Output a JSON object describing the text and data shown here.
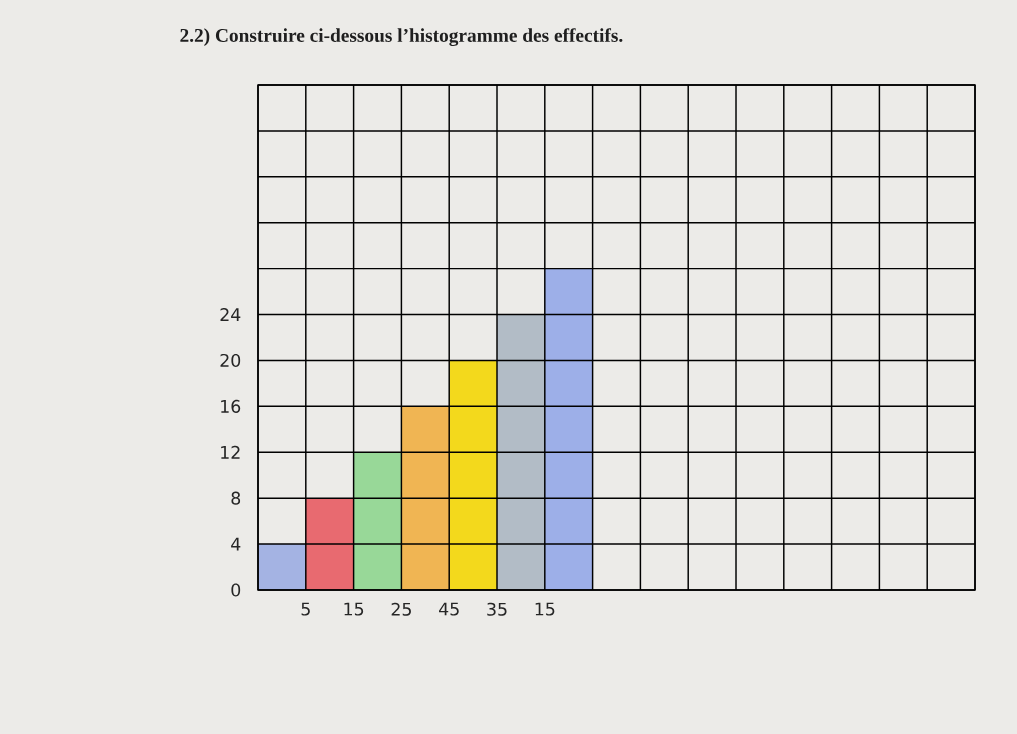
{
  "chart_data": {
    "type": "bar",
    "title": "2.2) Construire ci-dessous l’histogramme des effectifs.",
    "categories": [
      null,
      null,
      null,
      null,
      null,
      null,
      null,
      null,
      null,
      null,
      null,
      null,
      null,
      null,
      null
    ],
    "values": [
      4,
      8,
      12,
      16,
      20,
      24,
      28,
      null,
      null,
      null,
      null,
      null,
      null,
      null,
      null
    ],
    "colors": [
      "#a4b3e3",
      "#e86a70",
      "#98d898",
      "#f0b553",
      "#f3d91c",
      "#b2bcc6",
      "#9dafe8",
      null,
      null,
      null,
      null,
      null,
      null,
      null,
      null
    ],
    "ylim": [
      0,
      44
    ],
    "yticks": [
      0,
      4,
      8,
      12,
      16,
      20,
      24,
      {
        "value": 28,
        "label": null
      },
      {
        "value": 32,
        "label": null
      },
      {
        "value": 36,
        "label": null
      },
      {
        "value": 40,
        "label": null
      },
      {
        "value": 44,
        "label": null
      }
    ],
    "annotations": [
      "5",
      "15",
      "25",
      "45",
      "35",
      "15"
    ],
    "grid": true
  }
}
